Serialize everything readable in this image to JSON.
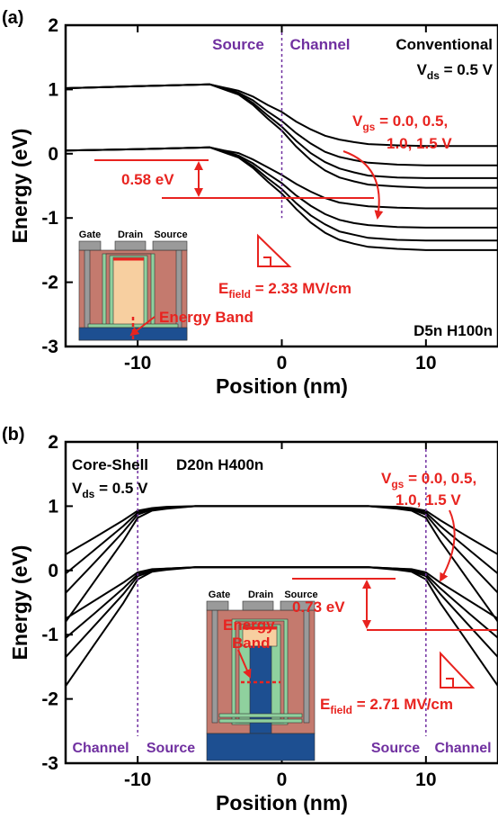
{
  "chart_data": [
    {
      "type": "line",
      "panel_label": "(a)",
      "x_label": "Position (nm)",
      "y_label": "Energy (eV)",
      "x": [
        -15,
        -10,
        -5,
        -4,
        -3,
        -2,
        -1,
        0,
        1,
        2,
        3,
        4,
        5,
        6,
        8,
        10,
        15
      ],
      "series": [
        {
          "color": "#000000",
          "values": [
            1.02,
            1.05,
            1.08,
            1.03,
            0.98,
            0.89,
            0.76,
            0.65,
            0.5,
            0.38,
            0.28,
            0.22,
            0.18,
            0.15,
            0.13,
            0.12,
            0.12
          ]
        },
        {
          "color": "#000000",
          "values": [
            1.02,
            1.05,
            1.08,
            1.02,
            0.95,
            0.83,
            0.66,
            0.51,
            0.32,
            0.16,
            0.03,
            -0.05,
            -0.1,
            -0.14,
            -0.17,
            -0.18,
            -0.18
          ]
        },
        {
          "color": "#000000",
          "values": [
            1.02,
            1.05,
            1.08,
            1.01,
            0.93,
            0.79,
            0.6,
            0.42,
            0.2,
            0.01,
            -0.13,
            -0.23,
            -0.29,
            -0.34,
            -0.37,
            -0.38,
            -0.38
          ]
        },
        {
          "color": "#000000",
          "values": [
            1.02,
            1.05,
            1.08,
            1.0,
            0.92,
            0.76,
            0.55,
            0.36,
            0.11,
            -0.1,
            -0.26,
            -0.37,
            -0.43,
            -0.48,
            -0.51,
            -0.53,
            -0.53
          ]
        },
        {
          "color": "#000000",
          "values": [
            0.05,
            0.07,
            0.1,
            0.05,
            0.01,
            -0.09,
            -0.21,
            -0.33,
            -0.47,
            -0.59,
            -0.69,
            -0.76,
            -0.79,
            -0.82,
            -0.84,
            -0.85,
            -0.85
          ]
        },
        {
          "color": "#000000",
          "values": [
            0.05,
            0.07,
            0.1,
            0.04,
            -0.03,
            -0.15,
            -0.31,
            -0.46,
            -0.65,
            -0.81,
            -0.94,
            -1.03,
            -1.08,
            -1.11,
            -1.14,
            -1.15,
            -1.15
          ]
        },
        {
          "color": "#000000",
          "values": [
            0.05,
            0.07,
            0.1,
            0.03,
            -0.05,
            -0.19,
            -0.38,
            -0.55,
            -0.77,
            -0.96,
            -1.1,
            -1.21,
            -1.26,
            -1.31,
            -1.34,
            -1.35,
            -1.35
          ]
        },
        {
          "color": "#000000",
          "values": [
            0.05,
            0.07,
            0.1,
            0.02,
            -0.06,
            -0.22,
            -0.43,
            -0.62,
            -0.86,
            -1.07,
            -1.23,
            -1.34,
            -1.4,
            -1.45,
            -1.48,
            -1.5,
            -1.5
          ]
        }
      ],
      "xlim": [
        -15,
        15
      ],
      "ylim": [
        -3,
        2
      ],
      "xticks": [
        -10,
        0,
        10
      ],
      "yticks": [
        -3,
        -2,
        -1,
        0,
        1,
        2
      ],
      "vlines": [
        0
      ],
      "vline_color": "#7030a0",
      "annotations": [
        [
          "Source"
        ],
        [
          "Channel"
        ],
        [
          "Conventional"
        ],
        [
          "V",
          "ds",
          " = 0.5 V"
        ],
        [
          "V",
          "gs",
          " = 0.0, 0.5,"
        ],
        [
          "1.0, 1.5 V"
        ],
        [
          "0.58 eV"
        ],
        [
          "E",
          "field",
          " = 2.33 MV/cm"
        ],
        [
          "Energy Band"
        ],
        [
          "D5n H100n"
        ]
      ],
      "inset_labels": [
        "Gate",
        "Drain",
        "Source"
      ]
    },
    {
      "type": "line",
      "panel_label": "(b)",
      "x_label": "Position (nm)",
      "y_label": "Energy (eV)",
      "x": [
        -15,
        -13,
        -11,
        -10,
        -9,
        -8,
        -6,
        -4,
        0,
        4,
        6,
        8,
        9,
        10,
        11,
        13,
        15
      ],
      "series": [
        {
          "color": "#000000",
          "values": [
            0.25,
            0.51,
            0.78,
            0.93,
            0.97,
            0.99,
            1.0,
            1.0,
            1.0,
            1.0,
            1.0,
            0.99,
            0.97,
            0.93,
            0.78,
            0.51,
            0.25
          ]
        },
        {
          "color": "#000000",
          "values": [
            -0.05,
            0.32,
            0.69,
            0.9,
            0.96,
            0.98,
            1.0,
            1.0,
            1.0,
            1.0,
            1.0,
            0.98,
            0.96,
            0.9,
            0.69,
            0.32,
            -0.05
          ]
        },
        {
          "color": "#000000",
          "values": [
            -0.35,
            0.12,
            0.6,
            0.87,
            0.95,
            0.97,
            1.0,
            1.0,
            1.0,
            1.0,
            1.0,
            0.97,
            0.95,
            0.87,
            0.6,
            0.12,
            -0.35
          ]
        },
        {
          "color": "#000000",
          "values": [
            -0.8,
            -0.17,
            0.46,
            0.82,
            0.93,
            0.96,
            1.0,
            1.0,
            1.0,
            1.0,
            1.0,
            0.96,
            0.93,
            0.82,
            0.46,
            -0.17,
            -0.8
          ]
        },
        {
          "color": "#000000",
          "values": [
            -0.75,
            -0.47,
            -0.19,
            -0.03,
            0.02,
            0.03,
            0.05,
            0.05,
            0.05,
            0.05,
            0.05,
            0.03,
            0.02,
            -0.03,
            -0.19,
            -0.47,
            -0.75
          ]
        },
        {
          "color": "#000000",
          "values": [
            -1.05,
            -0.67,
            -0.28,
            -0.06,
            0.01,
            0.03,
            0.05,
            0.05,
            0.05,
            0.05,
            0.05,
            0.03,
            0.01,
            -0.06,
            -0.28,
            -0.67,
            -1.05
          ]
        },
        {
          "color": "#000000",
          "values": [
            -1.35,
            -0.86,
            -0.37,
            -0.09,
            -0.01,
            0.02,
            0.05,
            0.05,
            0.05,
            0.05,
            0.05,
            0.02,
            -0.01,
            -0.09,
            -0.37,
            -0.86,
            -1.35
          ]
        },
        {
          "color": "#000000",
          "values": [
            -1.8,
            -1.15,
            -0.51,
            -0.14,
            -0.02,
            0.01,
            0.05,
            0.05,
            0.05,
            0.05,
            0.05,
            0.01,
            -0.02,
            -0.14,
            -0.51,
            -1.15,
            -1.8
          ]
        }
      ],
      "xlim": [
        -15,
        15
      ],
      "ylim": [
        -3,
        2
      ],
      "xticks": [
        -10,
        0,
        10
      ],
      "yticks": [
        -3,
        -2,
        -1,
        0,
        1,
        2
      ],
      "vlines": [
        -10,
        10
      ],
      "vline_color": "#7030a0",
      "annotations": [
        [
          "Core-Shell"
        ],
        [
          "D20n H400n"
        ],
        [
          "V",
          "ds",
          " = 0.5 V"
        ],
        [
          "V",
          "gs",
          " = 0.0, 0.5,"
        ],
        [
          "1.0, 1.5 V"
        ],
        [
          "0.73 eV"
        ],
        [
          "E",
          "field",
          " = 2.71 MV/cm"
        ],
        [
          "Energy"
        ],
        [
          "Band"
        ],
        [
          "Channel"
        ],
        [
          "Source"
        ],
        [
          "Source"
        ],
        [
          "Channel"
        ]
      ],
      "inset_labels": [
        "Gate",
        "Drain",
        "Source"
      ]
    }
  ]
}
